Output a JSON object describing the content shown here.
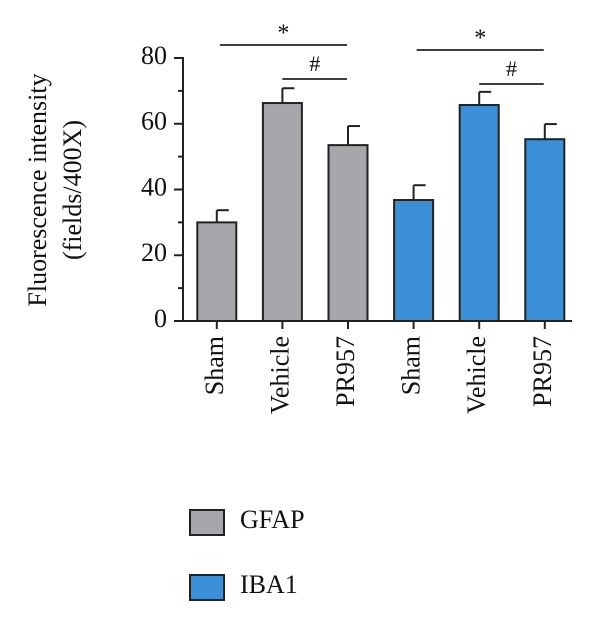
{
  "chart_data": {
    "type": "bar",
    "y_label": [
      "Fluorescence intensity",
      "(fields/400X)"
    ],
    "categories": [
      "Sham",
      "Vehicle",
      "PR957",
      "Sham",
      "Vehicle",
      "PR957"
    ],
    "series": [
      {
        "name": "GFAP",
        "color": "#a7a7ab",
        "values": [
          30,
          66.3,
          53.5,
          null,
          null,
          null
        ],
        "errors": [
          3.7,
          4.5,
          5.8,
          null,
          null,
          null
        ]
      },
      {
        "name": "IBA1",
        "color": "#3a8fd6",
        "values": [
          null,
          null,
          null,
          36.8,
          65.7,
          55.3
        ],
        "errors": [
          null,
          null,
          null,
          4.5,
          4,
          4.6
        ]
      }
    ],
    "ylim": [
      0,
      80
    ],
    "yticks": [
      0,
      20,
      40,
      60,
      80
    ],
    "yminor": [
      10,
      30,
      50,
      70
    ],
    "annotations": [
      {
        "text": "*"
      },
      {
        "text": "#"
      },
      {
        "text": "*"
      },
      {
        "text": "#"
      }
    ]
  }
}
